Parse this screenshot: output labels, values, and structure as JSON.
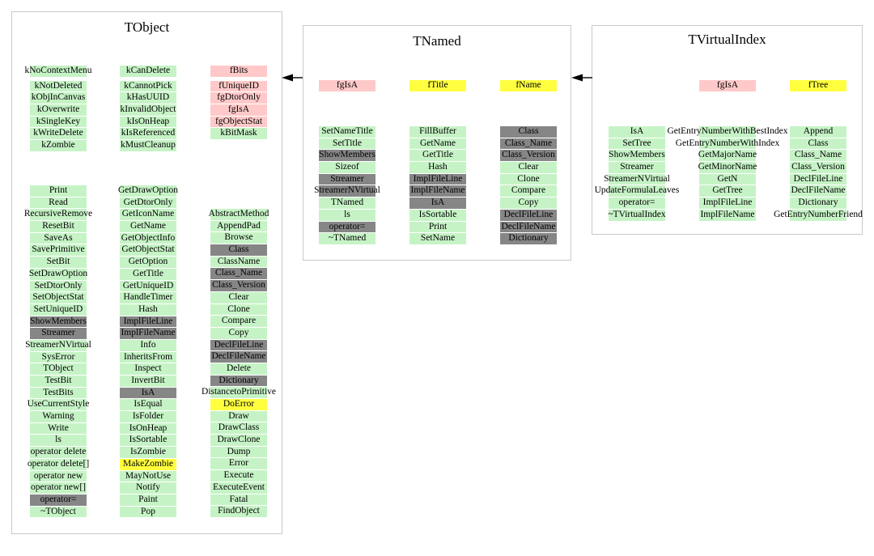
{
  "colors": {
    "green": "#c6f3c6",
    "gray": "#868686",
    "pink": "#ffc9c9",
    "yellow": "#ffff3f",
    "arrow": "#000000",
    "box_border": "#c9c9c9"
  },
  "arrows": [
    {
      "from": "TNamed",
      "to": "TObject"
    },
    {
      "from": "TVirtualIndex",
      "to": "TNamed"
    }
  ],
  "classes": [
    {
      "name": "TObject",
      "columns": [
        {
          "data": [
            [
              "kNoContextMenu",
              "green"
            ],
            [
              "kNotDeleted",
              "green"
            ],
            [
              "kObjInCanvas",
              "green"
            ],
            [
              "kOverwrite",
              "green"
            ],
            [
              "kSingleKey",
              "green"
            ],
            [
              "kWriteDelete",
              "green"
            ],
            [
              "kZombie",
              "green"
            ]
          ],
          "methods": [
            [
              "Print",
              "green"
            ],
            [
              "Read",
              "green"
            ],
            [
              "RecursiveRemove",
              "green"
            ],
            [
              "ResetBit",
              "green"
            ],
            [
              "SaveAs",
              "green"
            ],
            [
              "SavePrimitive",
              "green"
            ],
            [
              "SetBit",
              "green"
            ],
            [
              "SetDrawOption",
              "green"
            ],
            [
              "SetDtorOnly",
              "green"
            ],
            [
              "SetObjectStat",
              "green"
            ],
            [
              "SetUniqueID",
              "green"
            ],
            [
              "ShowMembers",
              "gray"
            ],
            [
              "Streamer",
              "gray"
            ],
            [
              "StreamerNVirtual",
              "green"
            ],
            [
              "SysError",
              "green"
            ],
            [
              "TObject",
              "green"
            ],
            [
              "TestBit",
              "green"
            ],
            [
              "TestBits",
              "green"
            ],
            [
              "UseCurrentStyle",
              "green"
            ],
            [
              "Warning",
              "green"
            ],
            [
              "Write",
              "green"
            ],
            [
              "ls",
              "green"
            ],
            [
              "operator delete",
              "green"
            ],
            [
              "operator delete[]",
              "green"
            ],
            [
              "operator new",
              "green"
            ],
            [
              "operator new[]",
              "green"
            ],
            [
              "operator=",
              "gray"
            ],
            [
              "~TObject",
              "green"
            ]
          ]
        },
        {
          "data": [
            [
              "kCanDelete",
              "green"
            ],
            [
              "kCannotPick",
              "green"
            ],
            [
              "kHasUUID",
              "green"
            ],
            [
              "kInvalidObject",
              "green"
            ],
            [
              "kIsOnHeap",
              "green"
            ],
            [
              "kIsReferenced",
              "green"
            ],
            [
              "kMustCleanup",
              "green"
            ]
          ],
          "methods": [
            [
              "GetDrawOption",
              "green"
            ],
            [
              "GetDtorOnly",
              "green"
            ],
            [
              "GetIconName",
              "green"
            ],
            [
              "GetName",
              "green"
            ],
            [
              "GetObjectInfo",
              "green"
            ],
            [
              "GetObjectStat",
              "green"
            ],
            [
              "GetOption",
              "green"
            ],
            [
              "GetTitle",
              "green"
            ],
            [
              "GetUniqueID",
              "green"
            ],
            [
              "HandleTimer",
              "green"
            ],
            [
              "Hash",
              "green"
            ],
            [
              "ImplFileLine",
              "gray"
            ],
            [
              "ImplFileName",
              "gray"
            ],
            [
              "Info",
              "green"
            ],
            [
              "InheritsFrom",
              "green"
            ],
            [
              "Inspect",
              "green"
            ],
            [
              "InvertBit",
              "green"
            ],
            [
              "IsA",
              "gray"
            ],
            [
              "IsEqual",
              "green"
            ],
            [
              "IsFolder",
              "green"
            ],
            [
              "IsOnHeap",
              "green"
            ],
            [
              "IsSortable",
              "green"
            ],
            [
              "IsZombie",
              "green"
            ],
            [
              "MakeZombie",
              "yellow"
            ],
            [
              "MayNotUse",
              "green"
            ],
            [
              "Notify",
              "green"
            ],
            [
              "Paint",
              "green"
            ],
            [
              "Pop",
              "green"
            ]
          ]
        },
        {
          "data": [
            [
              "fBits",
              "pink"
            ],
            [
              "fUniqueID",
              "pink"
            ],
            [
              "fgDtorOnly",
              "pink"
            ],
            [
              "fgIsA",
              "pink"
            ],
            [
              "fgObjectStat",
              "pink"
            ],
            [
              "kBitMask",
              "green"
            ]
          ],
          "methods": [
            [
              "AbstractMethod",
              "green"
            ],
            [
              "AppendPad",
              "green"
            ],
            [
              "Browse",
              "green"
            ],
            [
              "Class",
              "gray"
            ],
            [
              "ClassName",
              "green"
            ],
            [
              "Class_Name",
              "gray"
            ],
            [
              "Class_Version",
              "gray"
            ],
            [
              "Clear",
              "green"
            ],
            [
              "Clone",
              "green"
            ],
            [
              "Compare",
              "green"
            ],
            [
              "Copy",
              "green"
            ],
            [
              "DeclFileLine",
              "gray"
            ],
            [
              "DeclFileName",
              "gray"
            ],
            [
              "Delete",
              "green"
            ],
            [
              "Dictionary",
              "gray"
            ],
            [
              "DistancetoPrimitive",
              "green"
            ],
            [
              "DoError",
              "yellow"
            ],
            [
              "Draw",
              "green"
            ],
            [
              "DrawClass",
              "green"
            ],
            [
              "DrawClone",
              "green"
            ],
            [
              "Dump",
              "green"
            ],
            [
              "Error",
              "green"
            ],
            [
              "Execute",
              "green"
            ],
            [
              "ExecuteEvent",
              "green"
            ],
            [
              "Fatal",
              "green"
            ],
            [
              "FindObject",
              "green"
            ]
          ]
        }
      ]
    },
    {
      "name": "TNamed",
      "columns": [
        {
          "data": [
            [
              "fgIsA",
              "pink"
            ]
          ],
          "methods": [
            [
              "SetNameTitle",
              "green"
            ],
            [
              "SetTitle",
              "green"
            ],
            [
              "ShowMembers",
              "gray"
            ],
            [
              "Sizeof",
              "green"
            ],
            [
              "Streamer",
              "gray"
            ],
            [
              "StreamerNVirtual",
              "gray"
            ],
            [
              "TNamed",
              "green"
            ],
            [
              "ls",
              "green"
            ],
            [
              "operator=",
              "gray"
            ],
            [
              "~TNamed",
              "green"
            ]
          ]
        },
        {
          "data": [
            [
              "fTitle",
              "yellow"
            ]
          ],
          "methods": [
            [
              "FillBuffer",
              "green"
            ],
            [
              "GetName",
              "green"
            ],
            [
              "GetTitle",
              "green"
            ],
            [
              "Hash",
              "green"
            ],
            [
              "ImplFileLine",
              "gray"
            ],
            [
              "ImplFileName",
              "gray"
            ],
            [
              "IsA",
              "gray"
            ],
            [
              "IsSortable",
              "green"
            ],
            [
              "Print",
              "green"
            ],
            [
              "SetName",
              "green"
            ]
          ]
        },
        {
          "data": [
            [
              "fName",
              "yellow"
            ]
          ],
          "methods": [
            [
              "Class",
              "gray"
            ],
            [
              "Class_Name",
              "gray"
            ],
            [
              "Class_Version",
              "gray"
            ],
            [
              "Clear",
              "green"
            ],
            [
              "Clone",
              "green"
            ],
            [
              "Compare",
              "green"
            ],
            [
              "Copy",
              "green"
            ],
            [
              "DeclFileLine",
              "gray"
            ],
            [
              "DeclFileName",
              "gray"
            ],
            [
              "Dictionary",
              "gray"
            ]
          ]
        }
      ]
    },
    {
      "name": "TVirtualIndex",
      "columns": [
        {
          "data": [],
          "methods": [
            [
              "IsA",
              "green"
            ],
            [
              "SetTree",
              "green"
            ],
            [
              "ShowMembers",
              "green"
            ],
            [
              "Streamer",
              "green"
            ],
            [
              "StreamerNVirtual",
              "green"
            ],
            [
              "UpdateFormulaLeaves",
              "green"
            ],
            [
              "operator=",
              "green"
            ],
            [
              "~TVirtualIndex",
              "green"
            ]
          ]
        },
        {
          "data": [
            [
              "fgIsA",
              "pink"
            ]
          ],
          "methods": [
            [
              "GetEntryNumberWithBestIndex",
              "green"
            ],
            [
              "GetEntryNumberWithIndex",
              "green"
            ],
            [
              "GetMajorName",
              "green"
            ],
            [
              "GetMinorName",
              "green"
            ],
            [
              "GetN",
              "green"
            ],
            [
              "GetTree",
              "green"
            ],
            [
              "ImplFileLine",
              "green"
            ],
            [
              "ImplFileName",
              "green"
            ]
          ]
        },
        {
          "data": [
            [
              "fTree",
              "yellow"
            ]
          ],
          "methods": [
            [
              "Append",
              "green"
            ],
            [
              "Class",
              "green"
            ],
            [
              "Class_Name",
              "green"
            ],
            [
              "Class_Version",
              "green"
            ],
            [
              "DeclFileLine",
              "green"
            ],
            [
              "DeclFileName",
              "green"
            ],
            [
              "Dictionary",
              "green"
            ],
            [
              "GetEntryNumberFriend",
              "green"
            ]
          ]
        }
      ]
    }
  ]
}
